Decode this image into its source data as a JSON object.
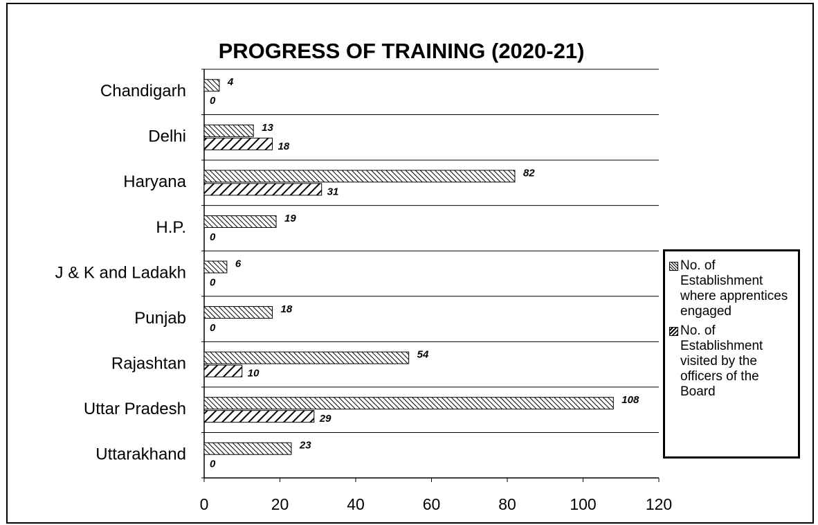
{
  "chart_data": {
    "type": "bar",
    "orientation": "horizontal",
    "title": "PROGRESS OF TRAINING (2020-21)",
    "categories": [
      "Chandigarh",
      "Delhi",
      "Haryana",
      "H.P.",
      "J & K and Ladakh",
      "Punjab",
      "Rajashtan",
      "Uttar Pradesh",
      "Uttarakhand"
    ],
    "series": [
      {
        "name": "No. of Establishment where apprentices engaged",
        "color": "#000000",
        "pattern": "dense-hatch",
        "values": [
          4,
          13,
          82,
          19,
          6,
          18,
          54,
          108,
          23
        ]
      },
      {
        "name": "No. of Establishment visited by the officers of the Board",
        "color": "#000000",
        "pattern": "wide-hatch",
        "values": [
          0,
          18,
          31,
          0,
          0,
          0,
          10,
          29,
          0
        ]
      }
    ],
    "xlim": [
      0,
      120
    ],
    "xticks": [
      0,
      20,
      40,
      60,
      80,
      100,
      120
    ],
    "legend": "right"
  }
}
